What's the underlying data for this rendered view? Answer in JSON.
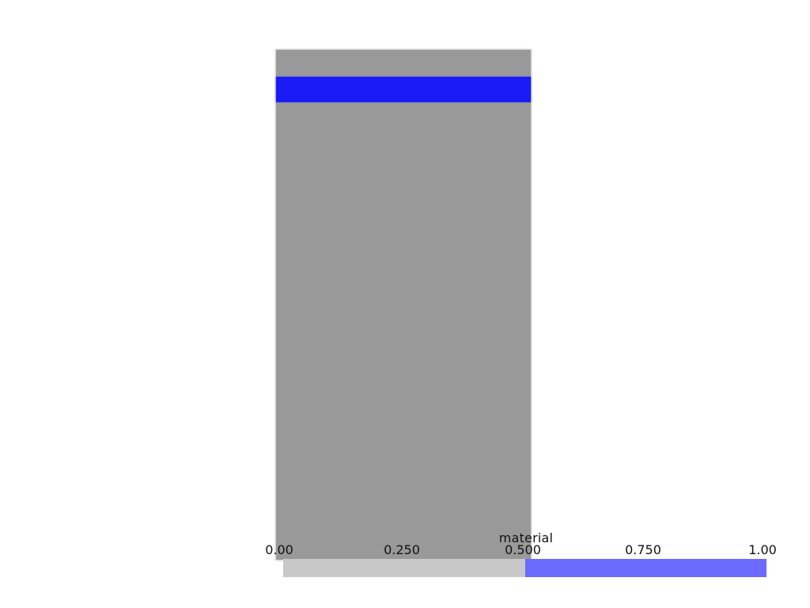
{
  "scalar_bar": {
    "title": "material",
    "ticks": [
      "0.00",
      "0.250",
      "0.500",
      "0.750",
      "1.00"
    ],
    "range": [
      0,
      1
    ],
    "colors": {
      "low": "#c8c8c8",
      "high": "#6b6bff"
    },
    "split_value": 0.5
  },
  "mesh": {
    "base_color": "#999999",
    "band_color": "#1a1af5"
  }
}
